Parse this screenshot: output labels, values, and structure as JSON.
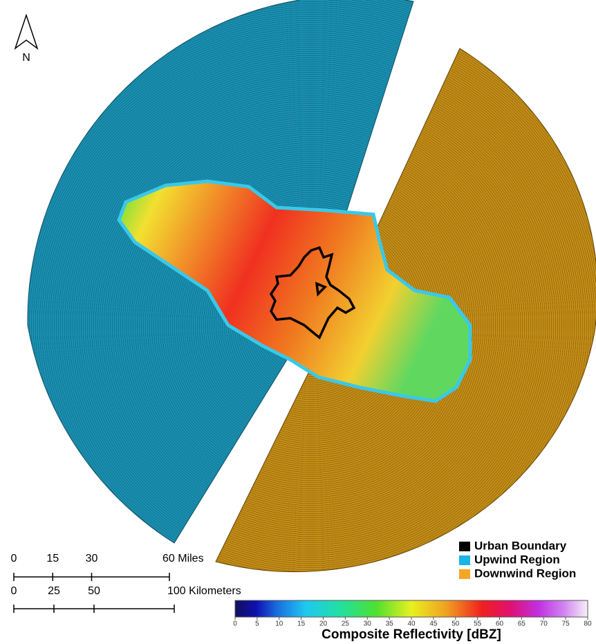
{
  "north": "N",
  "scale": {
    "miles": {
      "ticks": [
        0,
        15,
        30,
        {
          "value": 60,
          "label": "60 Miles"
        }
      ]
    },
    "kilometers": {
      "ticks": [
        0,
        25,
        50,
        {
          "value": 100,
          "label": "100 Kilometers"
        }
      ]
    }
  },
  "legend": [
    {
      "label": "Urban Boundary",
      "color": "#000000"
    },
    {
      "label": "Upwind Region",
      "color": "#1ab4e6"
    },
    {
      "label": "Downwind Region",
      "color": "#f5a623"
    }
  ],
  "colorbar": {
    "title": "Composite Reflectivity [dBZ]",
    "lim": [
      0,
      80
    ],
    "ticks": [
      0,
      5,
      10,
      15,
      20,
      25,
      30,
      35,
      40,
      45,
      50,
      55,
      60,
      65,
      70,
      75,
      80
    ]
  }
}
